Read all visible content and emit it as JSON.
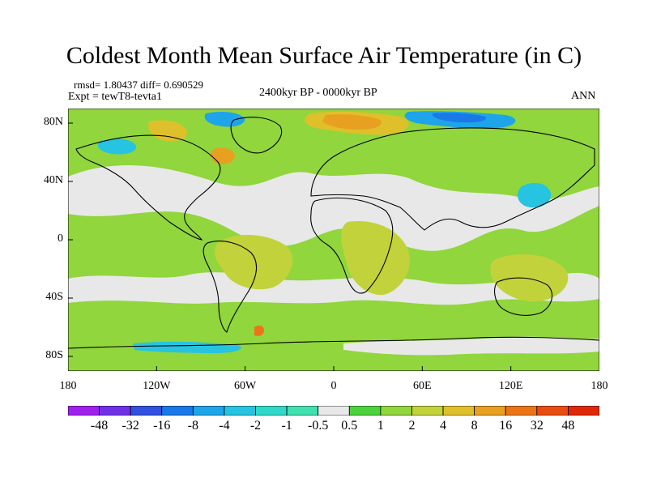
{
  "title": "Coldest Month Mean Surface Air Temperature (in C)",
  "stats_line": "rmsd= 1.80437 diff= 0.690529",
  "experiment_line": "Expt = tewT8-tevta1",
  "period": "2400kyr BP - 0000kyr BP",
  "season": "ANN",
  "axes": {
    "lat_labels": [
      "80N",
      "40N",
      "0",
      "40S",
      "80S"
    ],
    "lat_values": [
      80,
      40,
      0,
      -40,
      -80
    ],
    "lon_labels": [
      "180",
      "120W",
      "60W",
      "0",
      "60E",
      "120E",
      "180"
    ],
    "lon_values": [
      -180,
      -120,
      -60,
      0,
      60,
      120,
      180
    ],
    "lat_range": [
      -90,
      90
    ],
    "lon_range": [
      -180,
      180
    ]
  },
  "colorbar": {
    "labels": [
      "-48",
      "-32",
      "-16",
      "-8",
      "-4",
      "-2",
      "-1",
      "-0.5",
      "0.5",
      "1",
      "2",
      "4",
      "8",
      "16",
      "32",
      "48"
    ],
    "colors": [
      "#a020f0",
      "#7030e8",
      "#3050e0",
      "#1a78e8",
      "#1ea4e8",
      "#26c4e0",
      "#30d8c8",
      "#40e0b0",
      "#e8e8e8",
      "#4cd23c",
      "#90d63c",
      "#c2d23a",
      "#dfc02a",
      "#e8a020",
      "#ec7418",
      "#e84c10",
      "#e02808"
    ]
  },
  "colors": {
    "background_neutral": "#e8e8e8",
    "ocean_green": "#90d63c",
    "coast": "#000000"
  }
}
